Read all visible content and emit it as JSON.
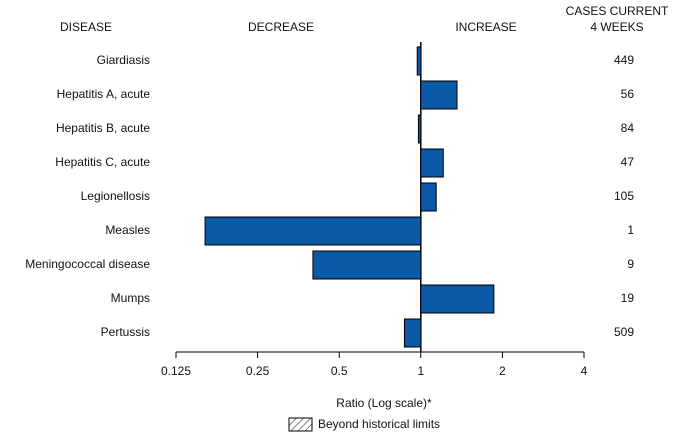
{
  "chart_data": {
    "type": "hbar",
    "headers": {
      "disease": "DISEASE",
      "decrease": "DECREASE",
      "increase": "INCREASE",
      "cases": [
        "CASES CURRENT",
        "4 WEEKS"
      ]
    },
    "categories": [
      "Giardiasis",
      "Hepatitis A, acute",
      "Hepatitis B, acute",
      "Hepatitis C, acute",
      "Legionellosis",
      "Measles",
      "Meningococcal disease",
      "Mumps",
      "Pertussis"
    ],
    "values": [
      0.97,
      1.36,
      0.98,
      1.21,
      1.14,
      0.16,
      0.4,
      1.86,
      0.87
    ],
    "cases": [
      449,
      56,
      84,
      47,
      105,
      1,
      9,
      19,
      509
    ],
    "color": "#0b5aa8",
    "xlabel": "Ratio (Log scale)*",
    "xscale": "log",
    "xlim": [
      0.125,
      4
    ],
    "xticks": [
      0.125,
      0.25,
      0.5,
      1,
      2,
      4
    ],
    "legend": {
      "label": "Beyond historical limits",
      "pattern": "hatch"
    }
  }
}
